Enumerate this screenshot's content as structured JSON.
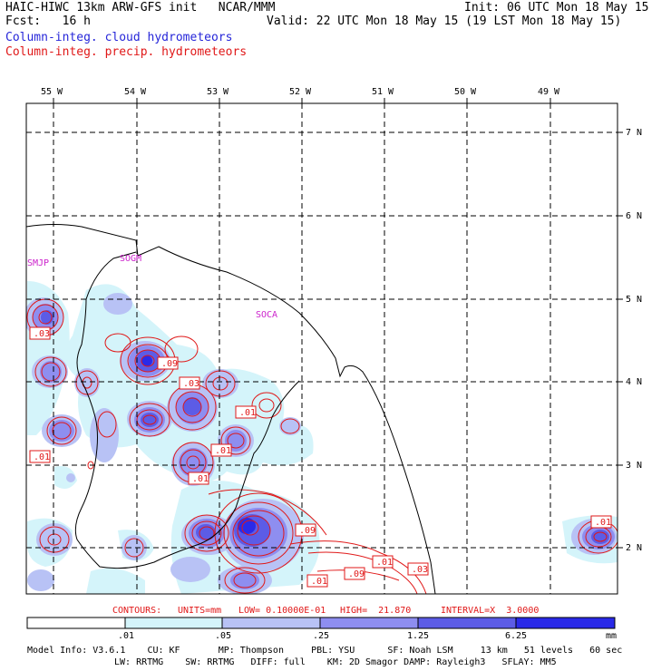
{
  "header": {
    "left_line1": "HAIC-HIWC 13km ARW-GFS init   NCAR/MMM",
    "left_line2": "Fcst:   16 h",
    "right_line1": "Init: 06 UTC Mon 18 May 15",
    "right_line2": "Valid: 22 UTC Mon 18 May 15 (19 LST Mon 18 May 15)",
    "legend_cloud": "Column-integ. cloud hydrometeors",
    "legend_precip": "Column-integ. precip. hydrometeors"
  },
  "colors": {
    "cloud": "#2626d9",
    "precip": "#e01818",
    "station": "#cc22cc",
    "shade1": "#d4f4fa",
    "shade2": "#b8c2f5",
    "shade3": "#8e8ef0",
    "shade4": "#5c5ce6",
    "shade5": "#2a2ae8"
  },
  "map": {
    "lon_labels": [
      "55 W",
      "54 W",
      "53 W",
      "52 W",
      "51 W",
      "50 W",
      "49 W"
    ],
    "lat_labels": [
      "7 N",
      "6 N",
      "5 N",
      "4 N",
      "3 N",
      "2 N"
    ],
    "stations": [
      "SMJP",
      "SOGM",
      "SOCA"
    ],
    "contour_labels": [
      ".03",
      ".09",
      ".03",
      ".01",
      ".01",
      ".01",
      ".01",
      ".09",
      ".01",
      ".03",
      ".01",
      ".09",
      ".01"
    ]
  },
  "contour_info": {
    "contours": "CONTOURS:",
    "units": "UNITS=mm",
    "low": "LOW= 0.10000E-01",
    "high": "HIGH=  21.870",
    "interval": "INTERVAL=X  3.0000"
  },
  "colorbar": {
    "ticks": [
      ".01",
      ".05",
      ".25",
      "1.25",
      "6.25"
    ],
    "unit": "mm"
  },
  "footer": {
    "line1": "Model Info: V3.6.1    CU: KF       MP: Thompson     PBL: YSU      SF: Noah LSM     13 km   51 levels   60 sec",
    "line2": "LW: RRTMG    SW: RRTMG   DIFF: full    KM: 2D Smagor DAMP: Rayleigh3   SFLAY: MM5"
  }
}
